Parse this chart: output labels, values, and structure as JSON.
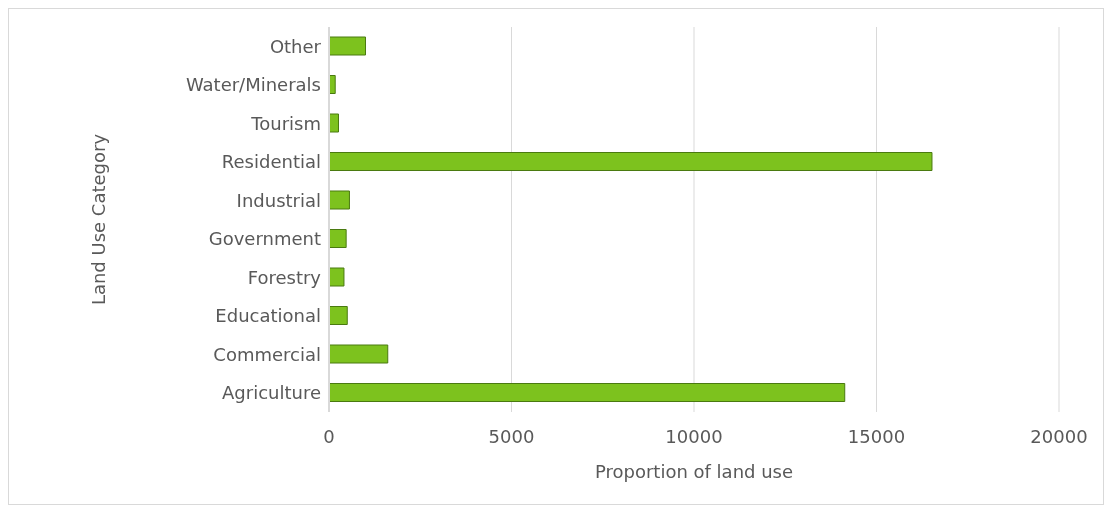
{
  "chart_data": {
    "type": "bar",
    "orientation": "horizontal",
    "xlabel": "Proportion of land use",
    "ylabel": "Land Use Category",
    "categories": [
      "Other",
      "Water/Minerals",
      "Tourism",
      "Residential",
      "Industrial",
      "Government",
      "Forestry",
      "Educational",
      "Commercial",
      "Agriculture"
    ],
    "values": [
      1000,
      170,
      260,
      16520,
      560,
      470,
      410,
      500,
      1610,
      14130
    ],
    "color": "#7dc21e",
    "xlim": [
      0,
      20000
    ],
    "xticks": [
      0,
      5000,
      10000,
      15000,
      20000
    ],
    "grid": "x"
  }
}
